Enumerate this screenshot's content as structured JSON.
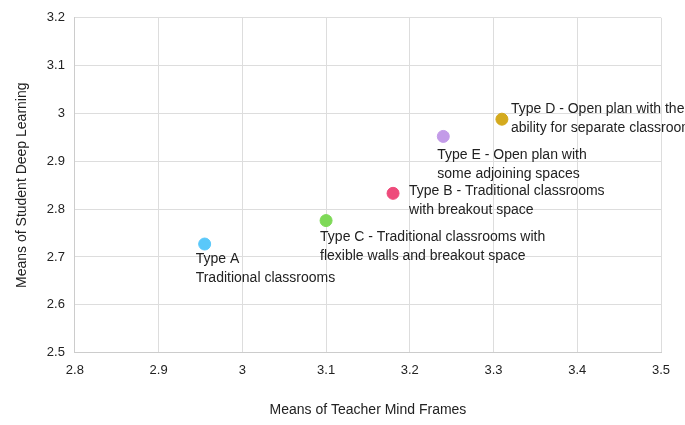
{
  "chart_data": {
    "type": "scatter",
    "x_label": "Means of Teacher Mind Frames",
    "y_label": "Means of Student Deep Learning",
    "x": [
      2.955,
      3.1,
      3.18,
      3.24,
      3.31
    ],
    "values": [
      2.727,
      2.776,
      2.833,
      2.952,
      2.988
    ],
    "colors": [
      "#5ac8fa",
      "#7ed957",
      "#ee4b7b",
      "#c39be8",
      "#d4aa1e"
    ],
    "point_labels": [
      [
        "Type A",
        "Traditional classrooms"
      ],
      [
        "Type C - Traditional classrooms with",
        "flexible walls and breakout space"
      ],
      [
        "Type B - Traditional classrooms",
        "with breakout space"
      ],
      [
        "Type E - Open plan with",
        "some adjoining spaces"
      ],
      [
        "Type D - Open plan with the",
        "ability for separate classrooms"
      ]
    ],
    "xlim": [
      2.8,
      3.5
    ],
    "xticks": [
      2.8,
      2.9,
      3,
      3.1,
      3.2,
      3.3,
      3.4,
      3.5
    ],
    "ylim": [
      2.5,
      3.2
    ],
    "yticks": [
      2.5,
      2.6,
      2.7,
      2.8,
      2.9,
      3,
      3.1,
      3.2
    ],
    "grid": true
  }
}
